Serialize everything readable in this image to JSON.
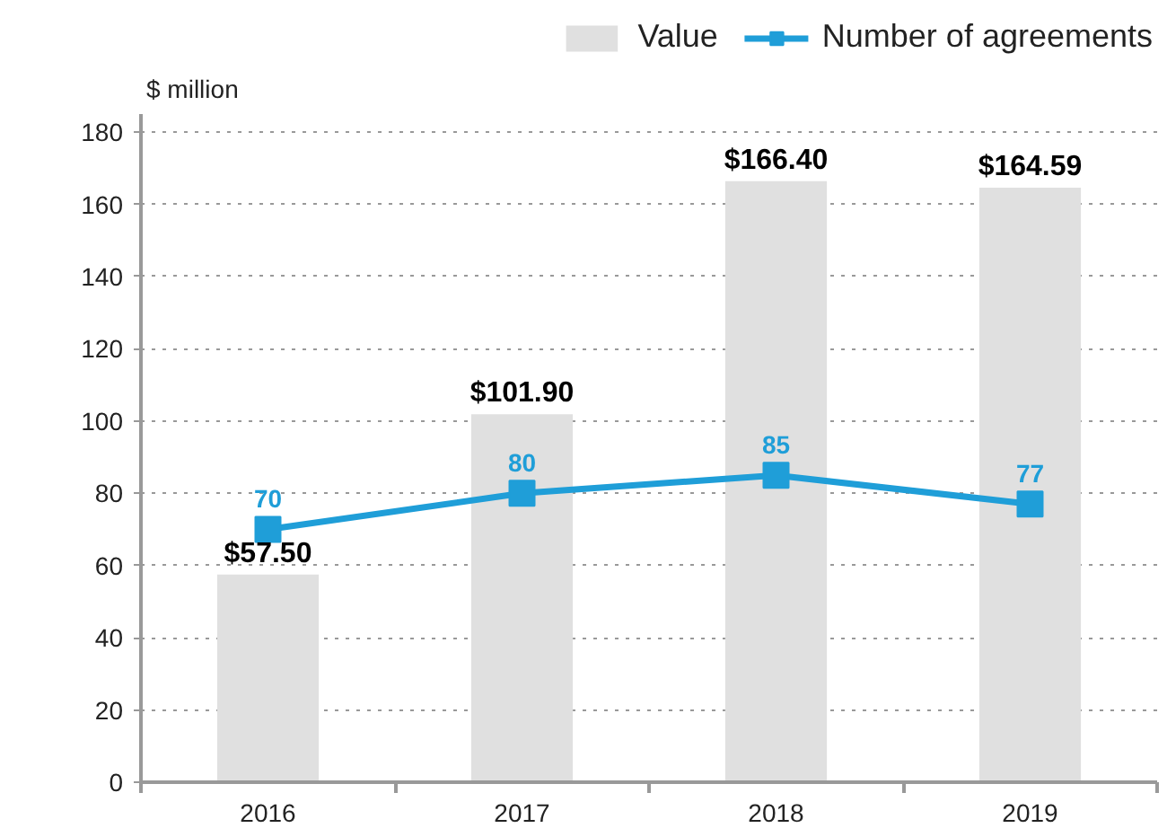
{
  "chart_data": {
    "type": "bar",
    "ylabel": "$ million",
    "categories": [
      "2016",
      "2017",
      "2018",
      "2019"
    ],
    "series": [
      {
        "name": "Value",
        "color": "#e0e0e0",
        "values": [
          57.5,
          101.9,
          166.4,
          164.59
        ],
        "value_labels": [
          "$57.50",
          "$101.90",
          "$166.40",
          "$164.59"
        ]
      },
      {
        "name": "Number of agreements",
        "type": "line",
        "color": "#1f9ed8",
        "values": [
          70,
          80,
          85,
          77
        ],
        "value_labels": [
          "70",
          "80",
          "85",
          "77"
        ]
      }
    ],
    "ylim": [
      0,
      185
    ],
    "yticks": [
      0,
      20,
      40,
      60,
      80,
      100,
      120,
      140,
      160,
      180
    ],
    "grid": "y",
    "legend": "top right",
    "marker": "square",
    "line_style": "solid"
  }
}
